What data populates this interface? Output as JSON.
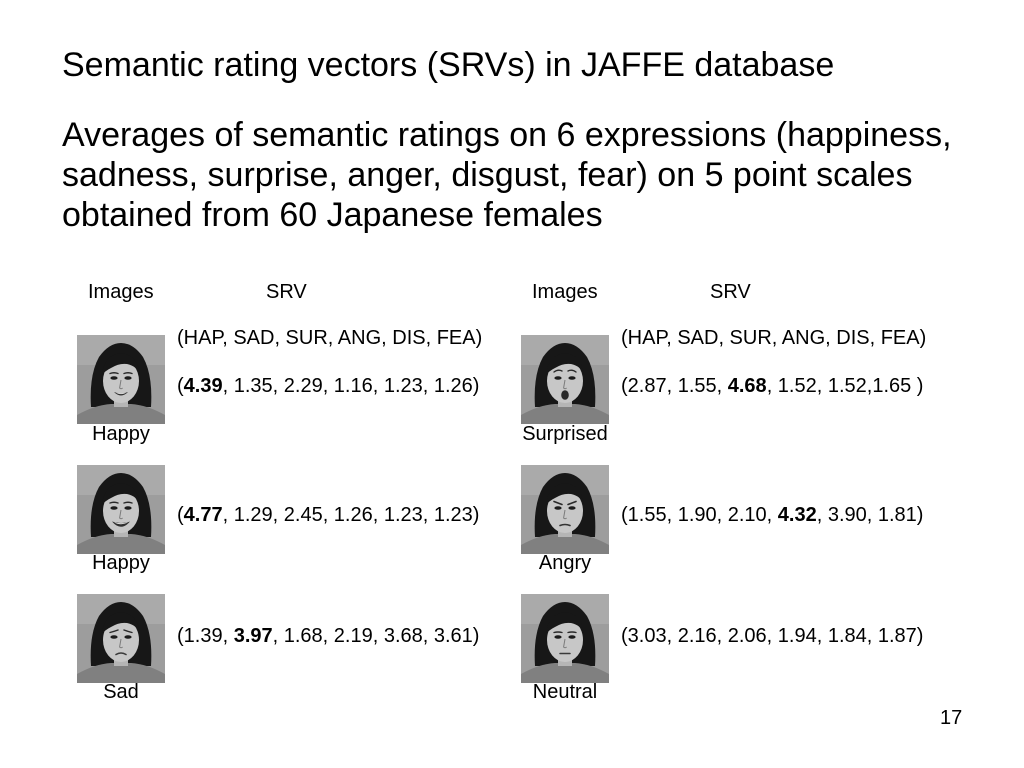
{
  "title": "Semantic rating vectors (SRVs) in JAFFE database",
  "description_lines": [
    "Averages of semantic ratings on 6 expressions (happiness,",
    "sadness, surprise, anger, disgust, fear) on 5 point scales",
    "obtained from 60 Japanese females"
  ],
  "columns": [
    {
      "images_header": "Images",
      "srv_header": "SRV",
      "srv_legend": "(HAP, SAD, SUR, ANG, DIS, FEA)",
      "rows": [
        {
          "label": "Happy",
          "srv": {
            "pre": "(",
            "bold": "4.39",
            "post": ", 1.35, 2.29, 1.16, 1.23, 1.26)"
          }
        },
        {
          "label": "Happy",
          "srv": {
            "pre": "(",
            "bold": "4.77",
            "post": ", 1.29, 2.45, 1.26, 1.23, 1.23)"
          }
        },
        {
          "label": "Sad",
          "srv": {
            "pre": "(1.39, ",
            "bold": "3.97",
            "post": ", 1.68, 2.19, 3.68, 3.61)"
          }
        }
      ]
    },
    {
      "images_header": "Images",
      "srv_header": "SRV",
      "srv_legend": "(HAP, SAD, SUR, ANG, DIS, FEA)",
      "rows": [
        {
          "label": "Surprised",
          "srv": {
            "pre": "(2.87, 1.55, ",
            "bold": "4.68",
            "post": ", 1.52, 1.52,1.65 )"
          }
        },
        {
          "label": "Angry",
          "srv": {
            "pre": "(1.55, 1.90, 2.10, ",
            "bold": "4.32",
            "post": ", 3.90, 1.81)"
          }
        },
        {
          "label": "Neutral",
          "srv": {
            "pre": "(3.03, 2.16, 2.06, 1.94, 1.84, 1.87)",
            "bold": "",
            "post": ""
          }
        }
      ]
    }
  ],
  "page_number": "17",
  "colors": {
    "background": "#ffffff",
    "text": "#000000"
  }
}
